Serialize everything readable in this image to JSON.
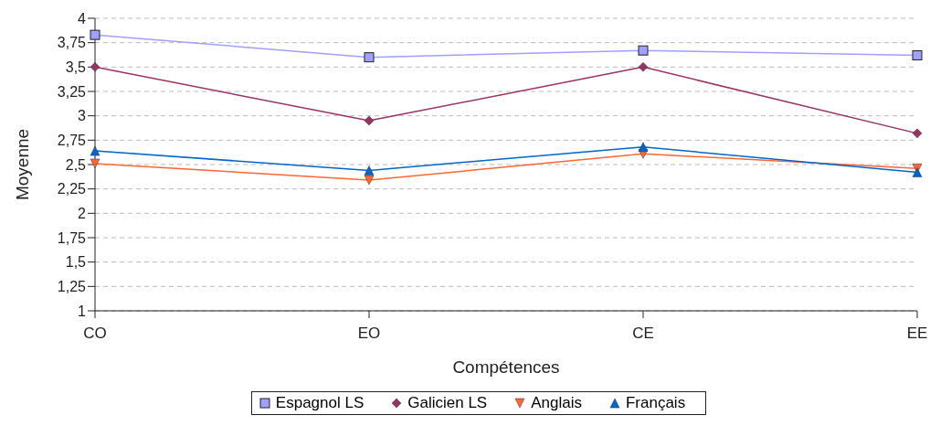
{
  "chart_data": {
    "type": "line",
    "xlabel": "Compétences",
    "ylabel": "Moyenne",
    "categories": [
      "CO",
      "EO",
      "CE",
      "EE"
    ],
    "series": [
      {
        "name": "Espagnol LS",
        "color": "#a0a0ff",
        "marker": "square",
        "values": [
          3.83,
          3.6,
          3.67,
          3.62
        ]
      },
      {
        "name": "Galicien LS",
        "color": "#993366",
        "marker": "diamond",
        "values": [
          3.5,
          2.95,
          3.5,
          2.82
        ]
      },
      {
        "name": "Anglais",
        "color": "#ff6633",
        "marker": "triangle-down",
        "values": [
          2.51,
          2.34,
          2.61,
          2.46
        ]
      },
      {
        "name": "Français",
        "color": "#0066cc",
        "marker": "triangle",
        "values": [
          2.64,
          2.44,
          2.68,
          2.42
        ]
      }
    ],
    "ylim": [
      1,
      4
    ],
    "yticks": [
      1,
      {
        "value": 1.25,
        "label": "1,25"
      },
      {
        "value": 1.5,
        "label": "1,5"
      },
      {
        "value": 1.75,
        "label": "1,75"
      },
      2,
      {
        "value": 2.25,
        "label": "2,25"
      },
      {
        "value": 2.5,
        "label": "2,5"
      },
      {
        "value": 2.75,
        "label": "2,75"
      },
      3,
      {
        "value": 3.25,
        "label": "3,25"
      },
      {
        "value": 3.5,
        "label": "3,5"
      },
      {
        "value": 3.75,
        "label": "3,75"
      },
      4
    ],
    "grid": "y",
    "legend": "bottom",
    "line_style": "solid"
  }
}
